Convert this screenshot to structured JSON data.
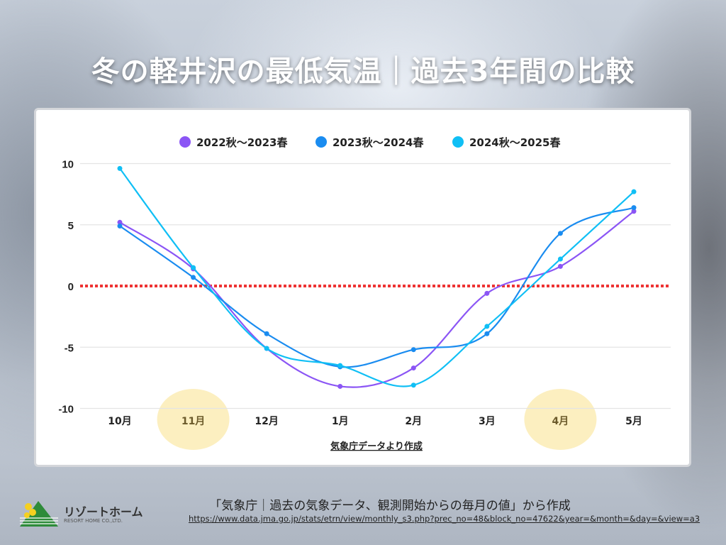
{
  "title": "冬の軽井沢の最低気温｜過去3年間の比較",
  "chart_data": {
    "type": "line",
    "categories": [
      "10月",
      "11月",
      "12月",
      "1月",
      "2月",
      "3月",
      "4月",
      "5月"
    ],
    "highlighted_categories": [
      "11月",
      "4月"
    ],
    "series": [
      {
        "name": "2022秋～2023春",
        "color": "#8b55f5",
        "values": [
          5.2,
          1.4,
          -5.1,
          -8.2,
          -6.7,
          -0.6,
          1.6,
          6.1
        ]
      },
      {
        "name": "2023秋～2024春",
        "color": "#1a8cf0",
        "values": [
          4.9,
          0.7,
          -3.9,
          -6.6,
          -5.2,
          -3.9,
          4.3,
          6.4
        ]
      },
      {
        "name": "2024秋～2025春",
        "color": "#10bff5",
        "values": [
          9.6,
          1.5,
          -5.1,
          -6.5,
          -8.1,
          -3.3,
          2.2,
          7.7
        ]
      }
    ],
    "yticks": [
      10,
      5,
      0,
      -5,
      -10
    ],
    "ylim": [
      -10,
      10
    ],
    "reference_line": {
      "value": 0,
      "color": "#ee3333",
      "style": "dotted"
    },
    "grid": true,
    "legend": "top",
    "xlabel": "気象庁データより作成"
  },
  "footer": {
    "note": "「気象庁｜過去の気象データ、観測開始からの毎月の値」から作成",
    "url": "https://www.data.jma.go.jp/stats/etrn/view/monthly_s3.php?prec_no=48&block_no=47622&year=&month=&day=&view=a3"
  },
  "logo": {
    "jp": "リゾートホーム",
    "en": "RESORT HOME CO.,LTD."
  }
}
